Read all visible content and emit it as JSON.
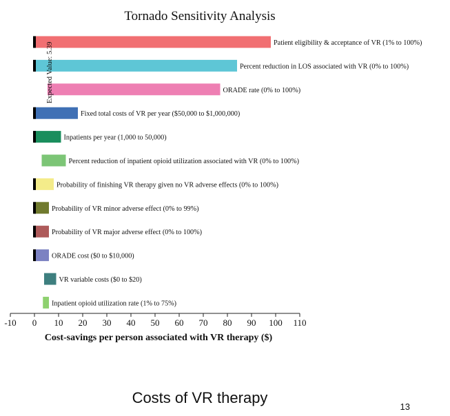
{
  "slide": {
    "caption": "Costs of VR therapy",
    "page_number": "13"
  },
  "colors": {
    "expected_marker": "#000000",
    "axis": "#222222"
  },
  "chart_data": {
    "type": "bar",
    "title": "Tornado Sensitivity Analysis",
    "xlabel": "Cost-savings per person associated with VR therapy ($)",
    "ylabel": "",
    "xlim": [
      -10,
      110
    ],
    "xticks": [
      -10,
      0,
      10,
      20,
      30,
      40,
      50,
      60,
      70,
      80,
      90,
      100,
      110
    ],
    "expected_value": 5.39,
    "expected_value_label": "Expected Value: 5.39",
    "bars": [
      {
        "label": "Patient eligibility & acceptance of VR (1% to 100%)",
        "low": 0,
        "high": 98,
        "color": "#f16f72"
      },
      {
        "label": "Percent reduction in LOS associated with VR (0% to 100%)",
        "low": 0,
        "high": 84,
        "color": "#5ec6d6"
      },
      {
        "label": "ORADE rate (0% to 100%)",
        "low": 5.39,
        "high": 77,
        "color": "#ee7fb3"
      },
      {
        "label": "Fixed total costs of VR per year ($50,000 to $1,000,000)",
        "low": 0,
        "high": 18,
        "color": "#3f70b5"
      },
      {
        "label": "Inpatients per year (1,000 to 50,000)",
        "low": 0,
        "high": 11,
        "color": "#1a8e5d"
      },
      {
        "label": "Percent reduction of inpatient opioid utilization associated with VR (0% to 100%)",
        "low": 3,
        "high": 13,
        "color": "#7cc576"
      },
      {
        "label": "Probability of finishing VR therapy given no VR adverse effects (0% to 100%)",
        "low": 0,
        "high": 8,
        "color": "#f4ec8a"
      },
      {
        "label": "Probability of VR minor adverse effect (0% to 99%)",
        "low": 0,
        "high": 6,
        "color": "#707a2e"
      },
      {
        "label": "Probability of VR major adverse effect (0% to 100%)",
        "low": 0,
        "high": 6,
        "color": "#ae5a5a"
      },
      {
        "label": "ORADE cost ($0 to $10,000)",
        "low": 0,
        "high": 6,
        "color": "#7c82c2"
      },
      {
        "label": "VR variable costs ($0 to $20)",
        "low": 4,
        "high": 9,
        "color": "#3e7f7f"
      },
      {
        "label": "Inpatient opioid utilization rate (1% to 75%)",
        "low": 3.5,
        "high": 6,
        "color": "#8ed16f"
      }
    ]
  }
}
